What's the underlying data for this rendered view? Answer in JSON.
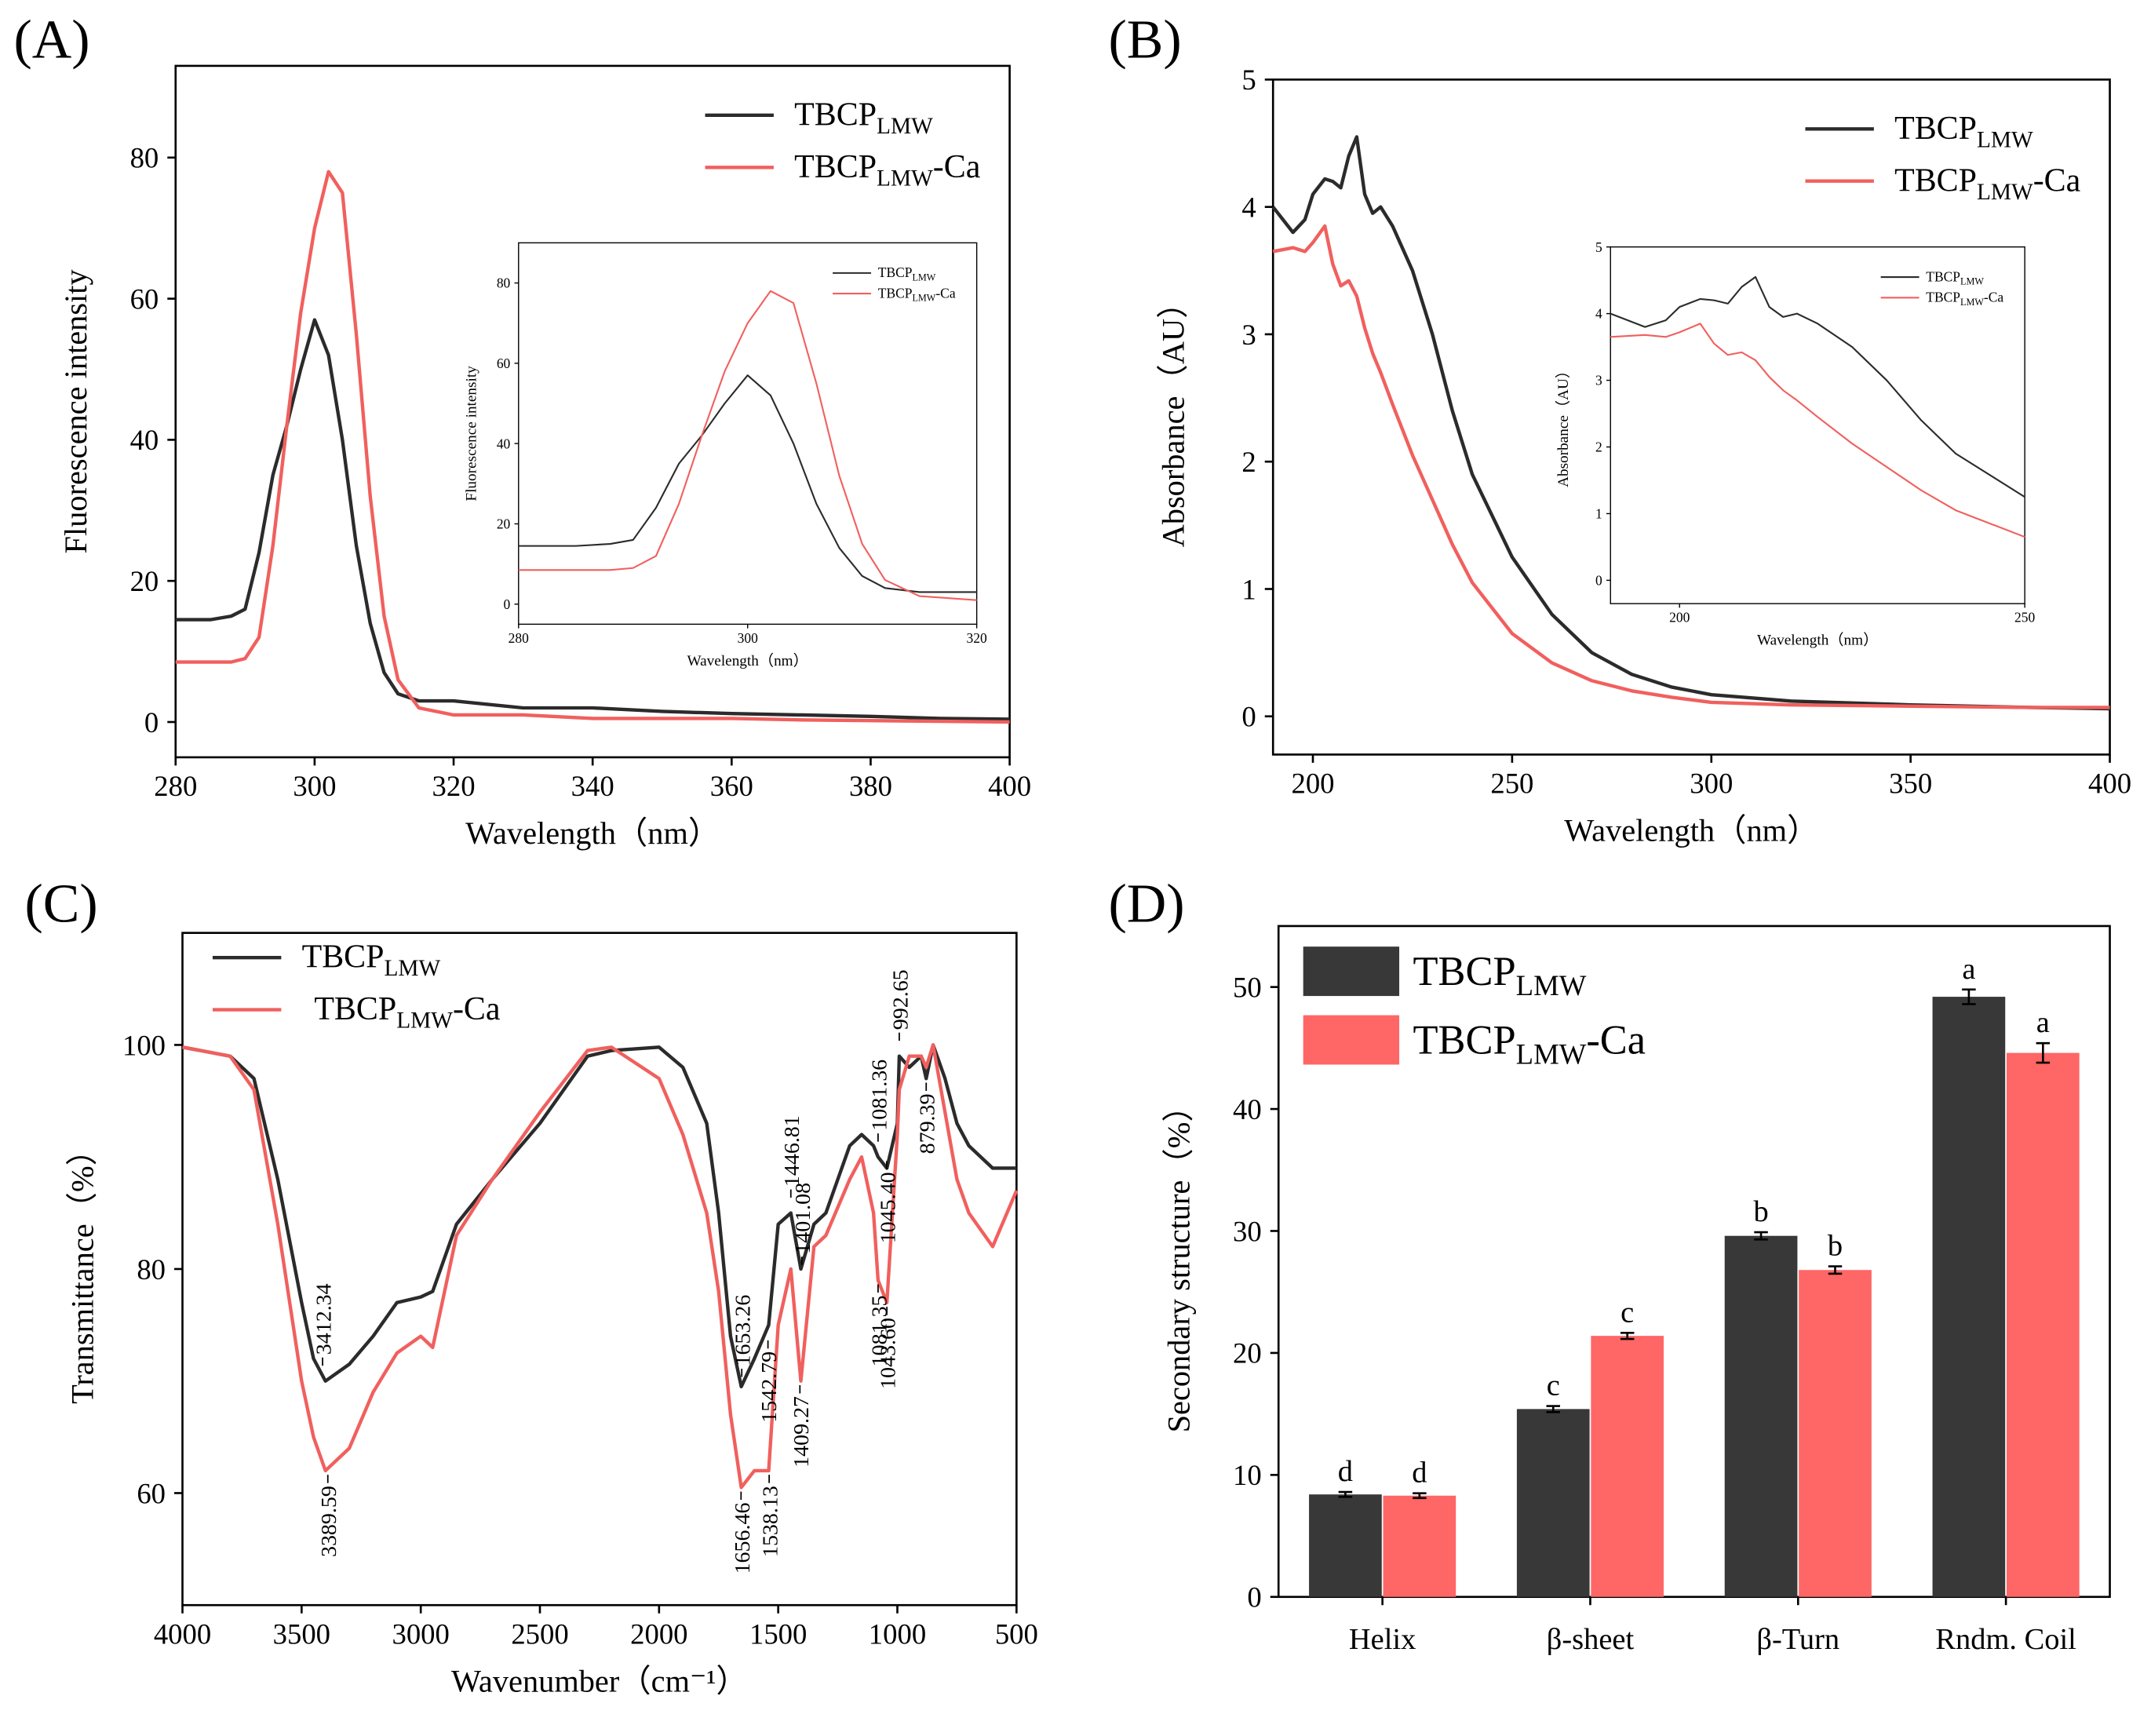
{
  "chart_data": [
    {
      "type": "line",
      "panel": "(A)",
      "xlabel": "Wavelength（nm）",
      "ylabel": "Fluorescence intensity",
      "xlim": [
        280,
        400
      ],
      "xticks": [
        280,
        300,
        320,
        340,
        360,
        380,
        400
      ],
      "ylim": [
        -5,
        93
      ],
      "yticks": [
        0,
        20,
        40,
        60,
        80
      ],
      "legend": "upper right",
      "x": [
        280,
        285,
        288,
        290,
        292,
        294,
        296,
        298,
        300,
        302,
        304,
        306,
        308,
        310,
        312,
        315,
        320,
        330,
        340,
        350,
        360,
        370,
        380,
        390,
        400
      ],
      "series": [
        {
          "name": "TBCP",
          "name_sub": "LMW",
          "color": "#2b2b2b",
          "values": [
            14.5,
            14.5,
            15,
            16,
            24,
            35,
            42,
            50,
            57,
            52,
            40,
            25,
            14,
            7,
            4,
            3,
            3,
            2,
            2,
            1.5,
            1.2,
            1,
            0.8,
            0.5,
            0.4
          ]
        },
        {
          "name": "TBCP",
          "name_sub": "LMW",
          "name_suffix": "-Ca",
          "color": "#f0605e",
          "values": [
            8.5,
            8.5,
            8.5,
            9,
            12,
            25,
            42,
            58,
            70,
            78,
            75,
            55,
            32,
            15,
            6,
            2,
            1,
            1,
            0.5,
            0.5,
            0.5,
            0.3,
            0.2,
            0.1,
            0
          ]
        }
      ],
      "inset": {
        "xlim": [
          280,
          320
        ],
        "xticks": [
          280,
          300,
          320
        ],
        "ylim": [
          -5,
          90
        ],
        "yticks": [
          0,
          20,
          40,
          60,
          80
        ]
      }
    },
    {
      "type": "line",
      "panel": "(B)",
      "xlabel": "Wavelength（nm）",
      "ylabel": "Absorbance（AU）",
      "xlim": [
        190,
        400
      ],
      "xticks": [
        200,
        250,
        300,
        350,
        400
      ],
      "ylim": [
        -0.3,
        5
      ],
      "yticks": [
        0,
        1,
        2,
        3,
        4,
        5
      ],
      "legend": "upper right",
      "x": [
        190,
        195,
        198,
        200,
        203,
        205,
        207,
        209,
        211,
        213,
        215,
        217,
        220,
        225,
        230,
        235,
        240,
        250,
        260,
        270,
        280,
        290,
        300,
        320,
        350,
        380,
        400
      ],
      "series": [
        {
          "name": "TBCP",
          "name_sub": "LMW",
          "color": "#2b2b2b",
          "values": [
            4.0,
            3.8,
            3.9,
            4.1,
            4.22,
            4.2,
            4.15,
            4.4,
            4.55,
            4.1,
            3.95,
            4.0,
            3.85,
            3.5,
            3.0,
            2.4,
            1.9,
            1.25,
            0.8,
            0.5,
            0.33,
            0.23,
            0.17,
            0.12,
            0.09,
            0.07,
            0.06
          ]
        },
        {
          "name": "TBCP",
          "name_sub": "LMW",
          "name_suffix": "-Ca",
          "color": "#f0605e",
          "values": [
            3.65,
            3.68,
            3.65,
            3.72,
            3.85,
            3.55,
            3.38,
            3.42,
            3.3,
            3.05,
            2.85,
            2.7,
            2.45,
            2.05,
            1.7,
            1.35,
            1.05,
            0.65,
            0.42,
            0.28,
            0.2,
            0.15,
            0.11,
            0.09,
            0.08,
            0.07,
            0.07
          ]
        }
      ],
      "inset": {
        "xlim": [
          190,
          250
        ],
        "xticks": [
          200,
          250
        ],
        "ylim": [
          -0.35,
          5
        ],
        "yticks": [
          0,
          1,
          2,
          3,
          4,
          5
        ]
      }
    },
    {
      "type": "line",
      "panel": "(C)",
      "xlabel": "Wavenumber（cm⁻¹）",
      "ylabel": "Transmittance（%）",
      "xlim": [
        4000,
        500
      ],
      "xticks": [
        4000,
        3500,
        3000,
        2500,
        2000,
        1500,
        1000,
        500
      ],
      "ylim": [
        50,
        110
      ],
      "yticks": [
        60,
        80,
        100
      ],
      "legend": "upper left",
      "x": [
        4000,
        3800,
        3700,
        3600,
        3500,
        3450,
        3400,
        3300,
        3200,
        3100,
        3000,
        2950,
        2850,
        2700,
        2500,
        2300,
        2200,
        2000,
        1900,
        1800,
        1750,
        1700,
        1655,
        1600,
        1540,
        1500,
        1447,
        1405,
        1350,
        1300,
        1200,
        1150,
        1100,
        1081,
        1044,
        1000,
        992,
        950,
        900,
        879,
        850,
        800,
        750,
        700,
        600,
        500
      ],
      "series": [
        {
          "name": "TBCP",
          "name_sub": "LMW",
          "color": "#2b2b2b",
          "values": [
            99.8,
            99,
            97,
            88,
            77,
            72,
            70,
            71.5,
            74,
            77,
            77.5,
            78,
            84,
            88,
            93,
            99,
            99.5,
            99.8,
            98,
            93,
            85,
            74,
            69.5,
            72,
            75,
            84,
            85,
            80,
            84,
            85,
            91,
            92,
            91,
            90,
            89,
            93,
            99,
            98,
            99,
            97,
            100,
            97,
            93,
            91,
            89,
            89
          ]
        },
        {
          "name": "TBCP",
          "name_sub": "LMW",
          "name_suffix": "-Ca",
          "color": "#f0605e",
          "values": [
            99.8,
            99,
            96,
            84,
            70,
            65,
            62,
            64,
            69,
            72.5,
            74,
            73,
            83,
            88,
            94,
            99.5,
            99.8,
            97,
            92,
            85,
            78,
            67,
            60.5,
            62,
            62,
            75,
            80,
            70,
            82,
            83,
            88,
            90,
            85,
            79,
            77,
            92,
            96,
            99,
            99,
            98,
            100,
            94,
            88,
            85,
            82,
            87
          ]
        }
      ],
      "annotations": [
        {
          "text": "3412.34",
          "x": 3412,
          "y": 71,
          "side": "above"
        },
        {
          "text": "3389.59",
          "x": 3390,
          "y": 62,
          "side": "below"
        },
        {
          "text": "1653.26",
          "x": 1653,
          "y": 70,
          "side": "above"
        },
        {
          "text": "1656.46",
          "x": 1656,
          "y": 60.5,
          "side": "below"
        },
        {
          "text": "1542.79",
          "x": 1543,
          "y": 74,
          "side": "below"
        },
        {
          "text": "1538.13",
          "x": 1538,
          "y": 62,
          "side": "below"
        },
        {
          "text": "1446.81",
          "x": 1447,
          "y": 86,
          "side": "above"
        },
        {
          "text": "1401.08",
          "x": 1401,
          "y": 80,
          "side": "above"
        },
        {
          "text": "1409.27",
          "x": 1409,
          "y": 70,
          "side": "below"
        },
        {
          "text": "1081.36",
          "x": 1081,
          "y": 91,
          "side": "above"
        },
        {
          "text": "1045.40",
          "x": 1045,
          "y": 90,
          "side": "below"
        },
        {
          "text": "1081.35",
          "x": 1081,
          "y": 79,
          "side": "below"
        },
        {
          "text": "1043.60",
          "x": 1044,
          "y": 77,
          "side": "below"
        },
        {
          "text": "992.65",
          "x": 992,
          "y": 100,
          "side": "above"
        },
        {
          "text": "879.39",
          "x": 879,
          "y": 97,
          "side": "below"
        }
      ]
    },
    {
      "type": "bar",
      "panel": "(D)",
      "ylabel": "Secondary structure（%）",
      "categories": [
        "Helix",
        "β-sheet",
        "β-Turn",
        "Rndm. Coil"
      ],
      "ylim": [
        0,
        55
      ],
      "yticks": [
        0,
        10,
        20,
        30,
        40,
        50
      ],
      "legend": "upper left",
      "series": [
        {
          "name": "TBCP",
          "name_sub": "LMW",
          "color": "#383838",
          "values": [
            8.4,
            15.4,
            29.6,
            49.2
          ],
          "errors": [
            0.2,
            0.25,
            0.3,
            0.6
          ],
          "letters": [
            "d",
            "c",
            "b",
            "a"
          ]
        },
        {
          "name": "TBCP",
          "name_sub": "LMW",
          "name_suffix": "-Ca",
          "color": "#ff6666",
          "values": [
            8.3,
            21.4,
            26.8,
            44.6
          ],
          "errors": [
            0.2,
            0.25,
            0.3,
            0.8
          ],
          "letters": [
            "d",
            "c",
            "b",
            "a"
          ]
        }
      ]
    }
  ]
}
